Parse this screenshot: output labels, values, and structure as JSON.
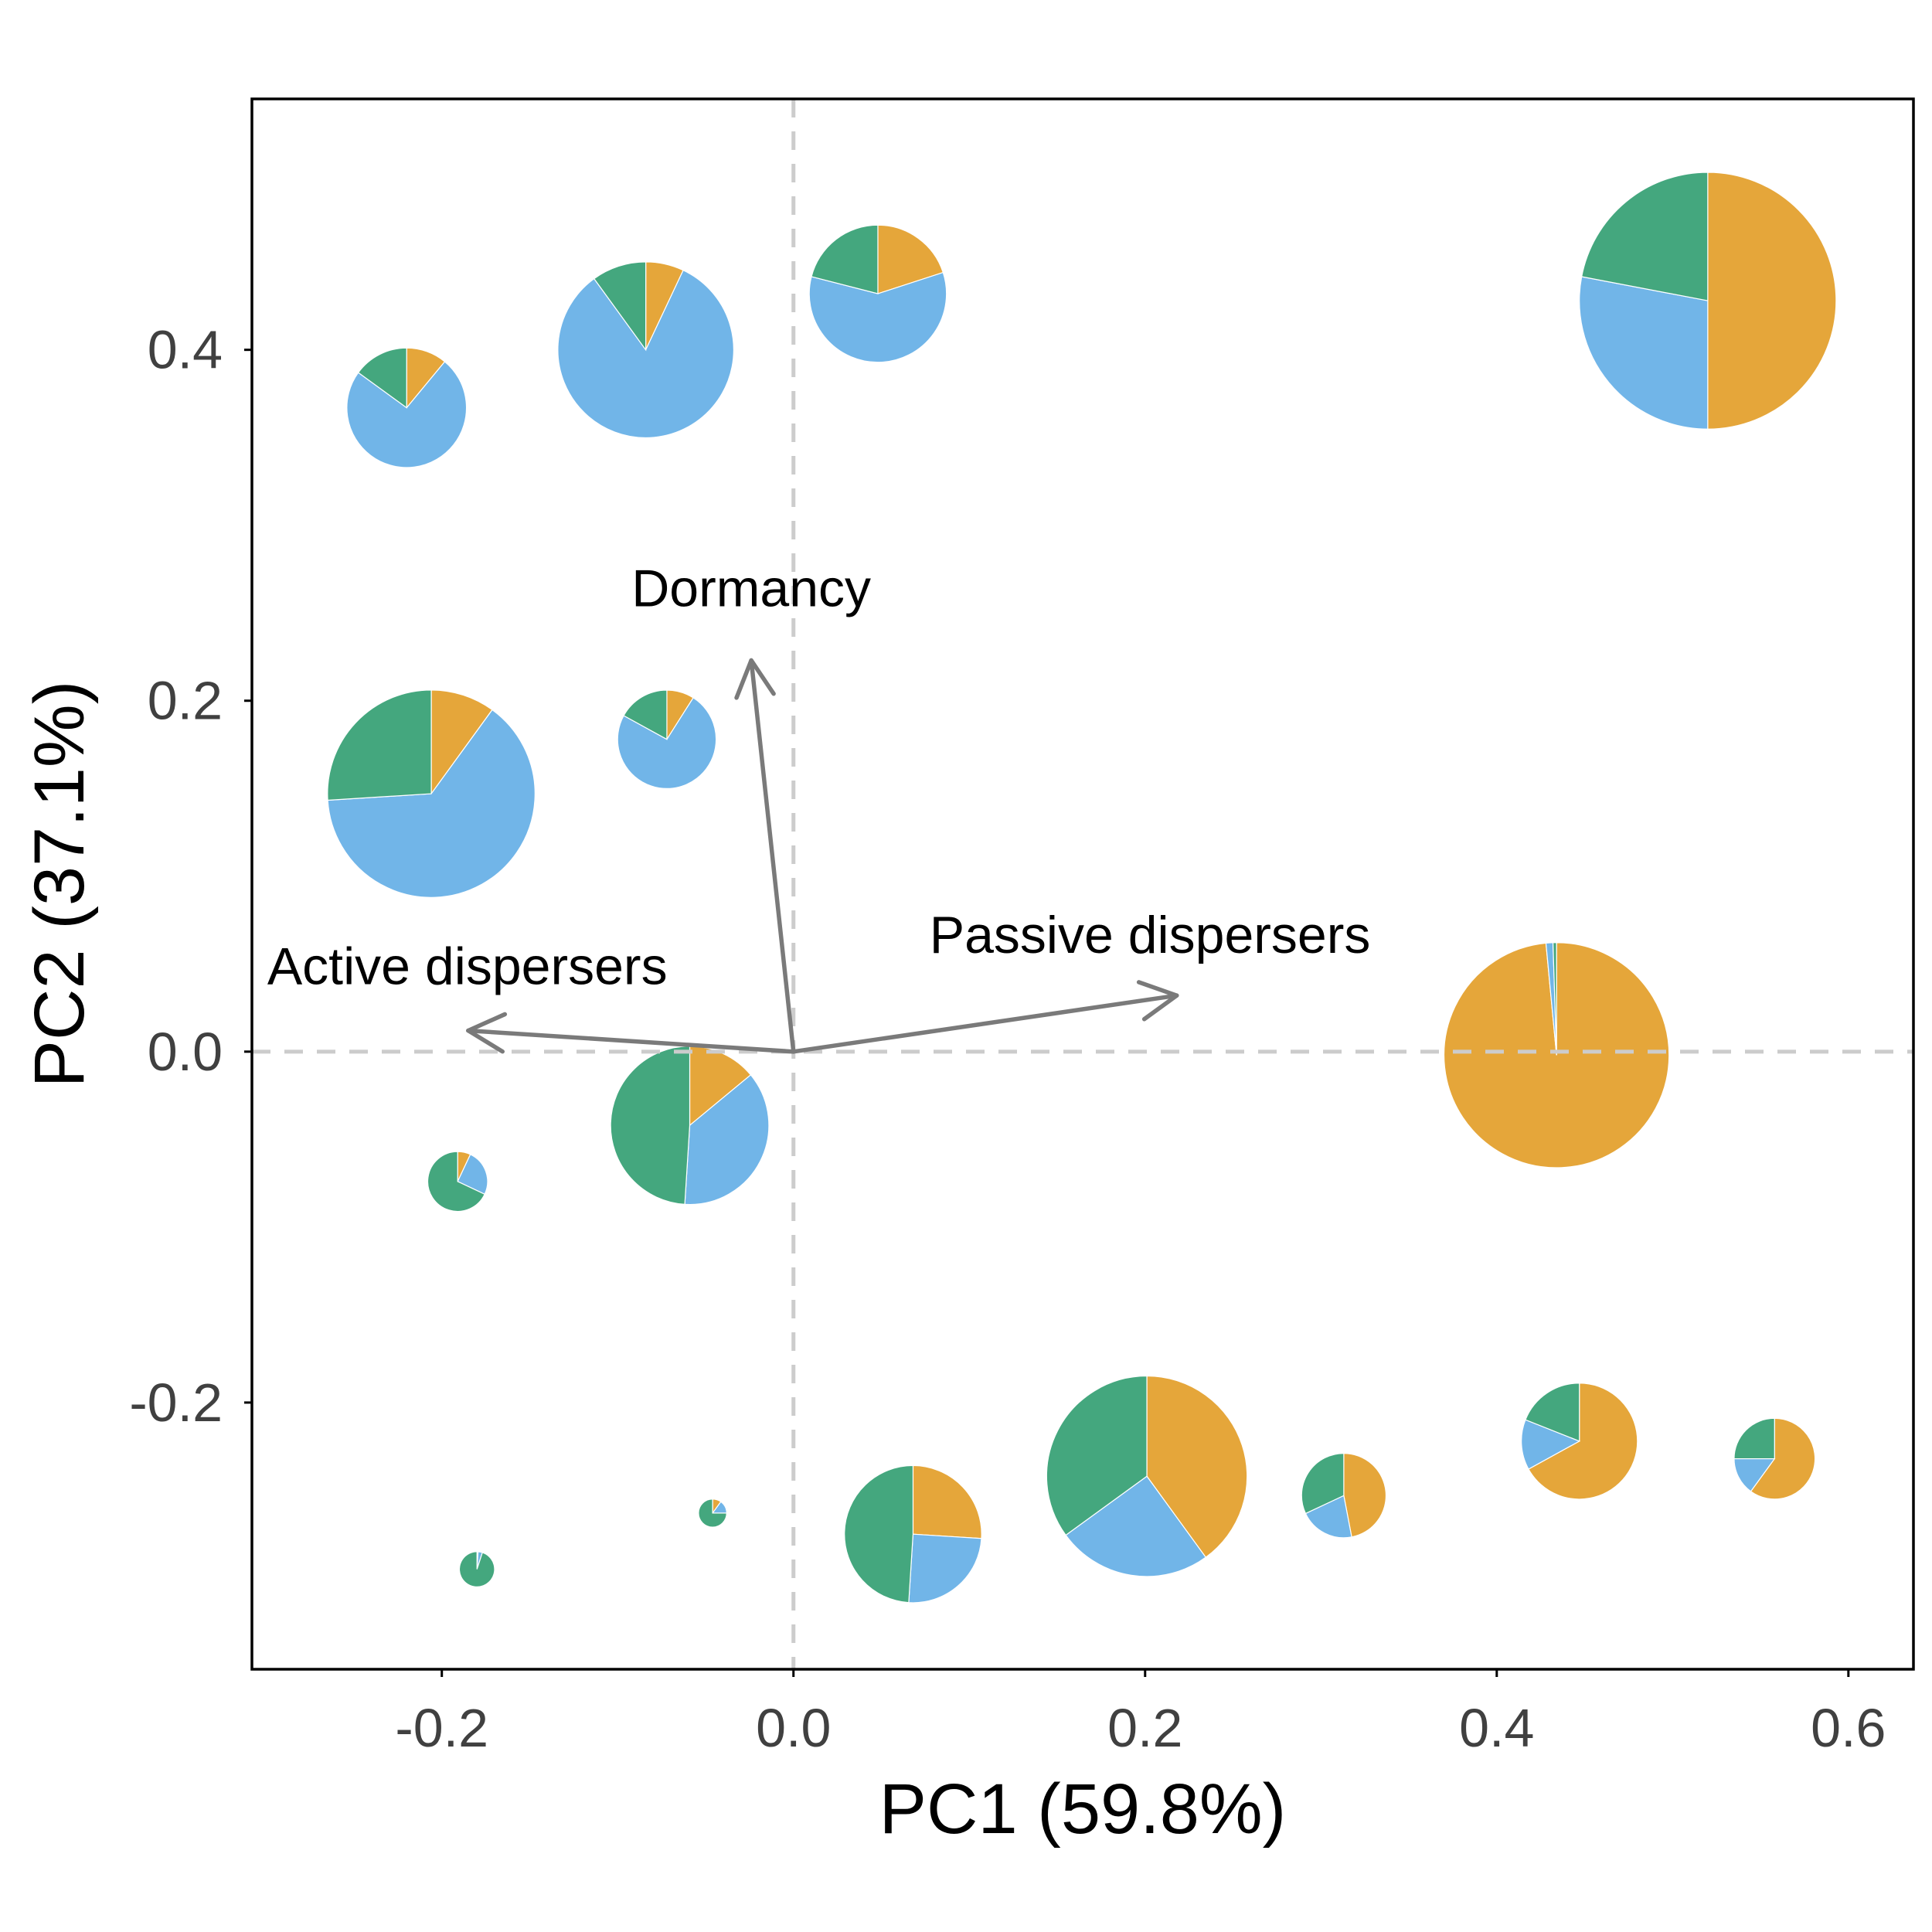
{
  "chart_data": {
    "type": "scatter",
    "subtype": "pie-scatter (PCA biplot)",
    "xlabel": "PC1 (59.8%)",
    "ylabel": "PC2 (37.1%)",
    "xlim": [
      -0.308,
      0.637
    ],
    "ylim": [
      -0.352,
      0.543
    ],
    "x_ticks": [
      -0.2,
      0.0,
      0.2,
      0.4,
      0.6
    ],
    "x_tick_labels": [
      "-0.2",
      "0.0",
      "0.2",
      "0.4",
      "0.6"
    ],
    "y_ticks": [
      -0.2,
      0.0,
      0.2,
      0.4
    ],
    "y_tick_labels": [
      "-0.2",
      "0.0",
      "0.2",
      "0.4"
    ],
    "grid": false,
    "zero_lines": true,
    "slice_colors": {
      "orange": "#E5A63A",
      "blue": "#71B5E8",
      "green": "#44A77E"
    },
    "points": [
      {
        "x": 0.52,
        "y": 0.428,
        "size": 0.073,
        "slices": [
          0.5,
          0.28,
          0.22
        ]
      },
      {
        "x": -0.084,
        "y": 0.4,
        "size": 0.05,
        "slices": [
          0.07,
          0.83,
          0.1
        ]
      },
      {
        "x": -0.22,
        "y": 0.367,
        "size": 0.034,
        "slices": [
          0.11,
          0.74,
          0.15
        ]
      },
      {
        "x": 0.048,
        "y": 0.432,
        "size": 0.039,
        "slices": [
          0.2,
          0.59,
          0.21
        ]
      },
      {
        "x": -0.206,
        "y": 0.147,
        "size": 0.059,
        "slices": [
          0.1,
          0.64,
          0.26
        ]
      },
      {
        "x": -0.072,
        "y": 0.178,
        "size": 0.028,
        "slices": [
          0.09,
          0.74,
          0.17
        ]
      },
      {
        "x": 0.434,
        "y": -0.002,
        "size": 0.064,
        "slices": [
          0.985,
          0.01,
          0.005
        ]
      },
      {
        "x": -0.059,
        "y": -0.042,
        "size": 0.045,
        "slices": [
          0.14,
          0.37,
          0.49
        ]
      },
      {
        "x": -0.191,
        "y": -0.074,
        "size": 0.017,
        "slices": [
          0.07,
          0.25,
          0.68
        ]
      },
      {
        "x": -0.046,
        "y": -0.263,
        "size": 0.008,
        "slices": [
          0.1,
          0.15,
          0.75
        ]
      },
      {
        "x": -0.18,
        "y": -0.295,
        "size": 0.01,
        "slices": [
          0.01,
          0.04,
          0.95
        ]
      },
      {
        "x": 0.068,
        "y": -0.275,
        "size": 0.039,
        "slices": [
          0.26,
          0.25,
          0.49
        ]
      },
      {
        "x": 0.201,
        "y": -0.242,
        "size": 0.057,
        "slices": [
          0.4,
          0.25,
          0.35
        ]
      },
      {
        "x": 0.313,
        "y": -0.253,
        "size": 0.024,
        "slices": [
          0.47,
          0.21,
          0.32
        ]
      },
      {
        "x": 0.447,
        "y": -0.222,
        "size": 0.033,
        "slices": [
          0.67,
          0.14,
          0.19
        ]
      },
      {
        "x": 0.558,
        "y": -0.232,
        "size": 0.023,
        "slices": [
          0.6,
          0.15,
          0.25
        ]
      }
    ],
    "vectors": [
      {
        "label": "Dormancy",
        "x": -0.024,
        "y": 0.223
      },
      {
        "label": "Active dispersers",
        "x": -0.185,
        "y": 0.012
      },
      {
        "label": "Passive dispersers",
        "x": 0.218,
        "y": 0.032
      }
    ]
  }
}
